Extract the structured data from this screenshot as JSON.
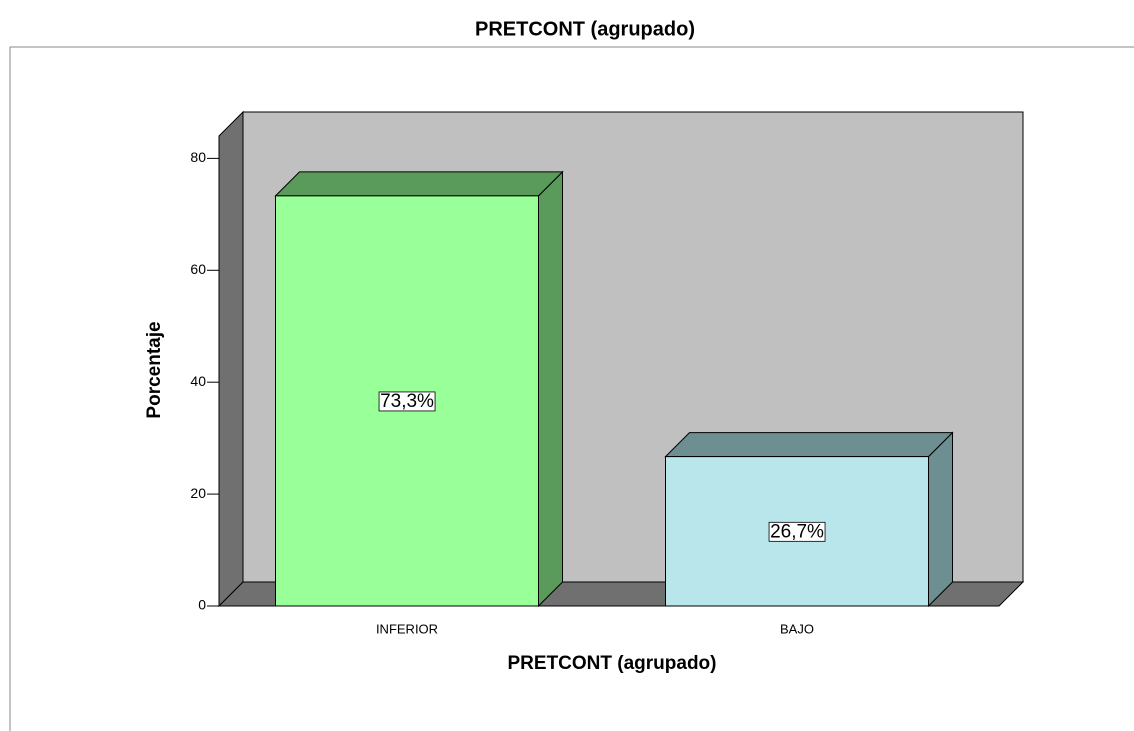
{
  "chart_data": {
    "type": "bar3d",
    "title": "PRETCONT (agrupado)",
    "x_label": "PRETCONT (agrupado)",
    "y_label": "Porcentaje",
    "categories": [
      "INFERIOR",
      "BAJO"
    ],
    "values": [
      73.3,
      26.7
    ],
    "value_labels": [
      "73,3%",
      "26,7%"
    ],
    "colors": [
      "#99ff99",
      "#b8e6ea"
    ],
    "side_colors": [
      "#5a9a5a",
      "#6e8f91"
    ],
    "ylim": [
      0,
      84
    ],
    "yticks": [
      0,
      20,
      40,
      60,
      80
    ]
  }
}
